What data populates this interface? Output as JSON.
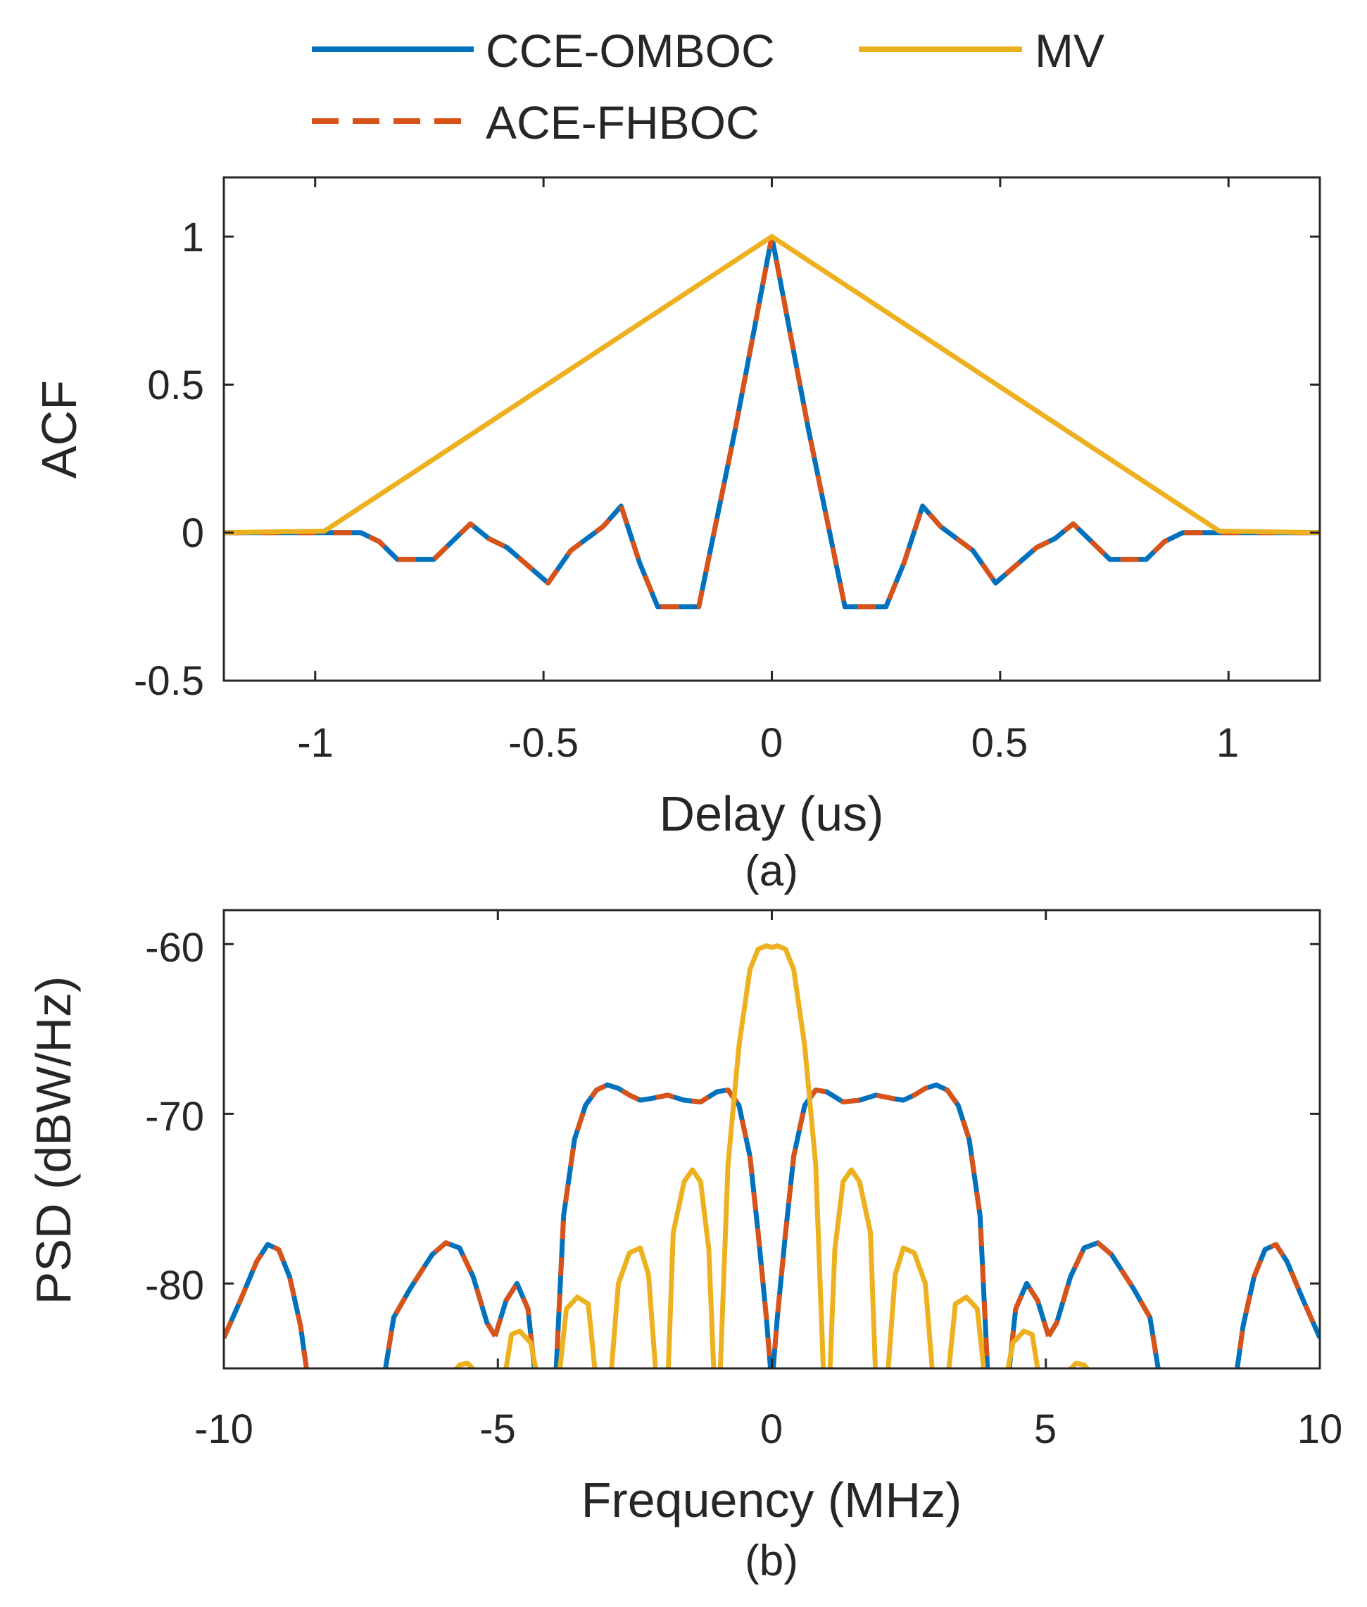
{
  "legend": {
    "items": [
      {
        "label": "CCE-OMBOC",
        "color": "#0072BD",
        "style": "solid"
      },
      {
        "label": "MV",
        "color": "#EDB120",
        "style": "solid"
      },
      {
        "label": "ACE-FHBOC",
        "color": "#D95319",
        "style": "dashed"
      }
    ]
  },
  "captions": {
    "a": "(a)",
    "b": "(b)"
  },
  "chart_data": [
    {
      "type": "line",
      "id": "a",
      "title": "",
      "xlabel": "Delay (us)",
      "ylabel": "ACF",
      "xlim": [
        -1.2,
        1.2
      ],
      "ylim": [
        -0.5,
        1.2
      ],
      "xticks": [
        -1,
        -0.5,
        0,
        0.5,
        1
      ],
      "xtick_labels": [
        "-1",
        "-0.5",
        "0",
        "0.5",
        "1"
      ],
      "yticks": [
        -0.5,
        0,
        0.5,
        1
      ],
      "ytick_labels": [
        "-0.5",
        "0",
        "0.5",
        "1"
      ],
      "grid": false,
      "legend_position": "top-outside",
      "series": [
        {
          "name": "CCE-OMBOC",
          "color": "#0072BD",
          "x": [
            -1.2,
            -0.9,
            -0.86,
            -0.82,
            -0.74,
            -0.66,
            -0.62,
            -0.58,
            -0.49,
            -0.44,
            -0.37,
            -0.33,
            -0.29,
            -0.25,
            -0.16,
            -0.08,
            0,
            0.08,
            0.16,
            0.25,
            0.29,
            0.33,
            0.37,
            0.44,
            0.49,
            0.58,
            0.62,
            0.66,
            0.74,
            0.82,
            0.86,
            0.9,
            1.2
          ],
          "y": [
            0,
            0,
            -0.03,
            -0.09,
            -0.09,
            0.03,
            -0.02,
            -0.05,
            -0.17,
            -0.06,
            0.02,
            0.09,
            -0.1,
            -0.25,
            -0.25,
            0.35,
            1,
            0.35,
            -0.25,
            -0.25,
            -0.1,
            0.09,
            0.02,
            -0.06,
            -0.17,
            -0.05,
            -0.02,
            0.03,
            -0.09,
            -0.09,
            -0.03,
            0,
            0
          ]
        },
        {
          "name": "ACE-FHBOC",
          "color": "#D95319",
          "dashed": true,
          "x": [
            -1.2,
            -0.9,
            -0.86,
            -0.82,
            -0.74,
            -0.66,
            -0.62,
            -0.58,
            -0.49,
            -0.44,
            -0.37,
            -0.33,
            -0.29,
            -0.25,
            -0.16,
            -0.08,
            0,
            0.08,
            0.16,
            0.25,
            0.29,
            0.33,
            0.37,
            0.44,
            0.49,
            0.58,
            0.62,
            0.66,
            0.74,
            0.82,
            0.86,
            0.9,
            1.2
          ],
          "y": [
            0,
            0,
            -0.03,
            -0.09,
            -0.09,
            0.03,
            -0.02,
            -0.05,
            -0.17,
            -0.06,
            0.02,
            0.09,
            -0.1,
            -0.25,
            -0.25,
            0.35,
            1,
            0.35,
            -0.25,
            -0.25,
            -0.1,
            0.09,
            0.02,
            -0.06,
            -0.17,
            -0.05,
            -0.02,
            0.03,
            -0.09,
            -0.09,
            -0.03,
            0,
            0
          ]
        },
        {
          "name": "MV",
          "color": "#EDB120",
          "x": [
            -1.2,
            -0.98,
            0,
            0.98,
            1.2
          ],
          "y": [
            0,
            0.005,
            1,
            0.005,
            0
          ]
        }
      ]
    },
    {
      "type": "line",
      "id": "b",
      "title": "",
      "xlabel": "Frequency (MHz)",
      "ylabel": "PSD (dBW/Hz)",
      "xlim": [
        -10,
        10
      ],
      "ylim": [
        -85,
        -58
      ],
      "xticks": [
        -10,
        -5,
        0,
        5,
        10
      ],
      "xtick_labels": [
        "-10",
        "-5",
        "0",
        "5",
        "10"
      ],
      "yticks": [
        -80,
        -70,
        -60
      ],
      "ytick_labels": [
        "-80",
        "-70",
        "-60"
      ],
      "grid": false,
      "series": [
        {
          "name": "CCE-OMBOC",
          "color": "#0072BD",
          "segments": [
            {
              "x": [
                -10,
                -9.7,
                -9.4,
                -9.2,
                -9.0,
                -8.8,
                -8.6,
                -8.45
              ],
              "y": [
                -83.2,
                -81,
                -78.7,
                -77.7,
                -78,
                -79.6,
                -82.5,
                -86
              ]
            },
            {
              "x": [
                -7.1,
                -6.9,
                -6.6,
                -6.2,
                -5.95,
                -5.7,
                -5.45,
                -5.2,
                -5.05
              ],
              "y": [
                -86,
                -82,
                -80.3,
                -78.3,
                -77.6,
                -77.9,
                -79.6,
                -82.3,
                -83.1
              ]
            },
            {
              "x": [
                -5.05,
                -4.85,
                -4.65,
                -4.45,
                -4.3
              ],
              "y": [
                -83.1,
                -81,
                -80,
                -81.5,
                -86
              ]
            },
            {
              "x": [
                -3.95,
                -3.8,
                -3.6,
                -3.4,
                -3.2,
                -3.0,
                -2.8,
                -2.6,
                -2.4,
                -2.2,
                -1.9,
                -1.6,
                -1.3,
                -1.0,
                -0.8,
                -0.6,
                -0.4,
                -0.25,
                -0.1,
                0
              ],
              "y": [
                -86,
                -76,
                -71.5,
                -69.5,
                -68.6,
                -68.3,
                -68.5,
                -68.9,
                -69.2,
                -69.1,
                -68.9,
                -69.2,
                -69.3,
                -68.7,
                -68.6,
                -69.5,
                -72.5,
                -77,
                -82,
                -86
              ]
            },
            {
              "x": [
                0,
                0.1,
                0.25,
                0.4,
                0.6,
                0.8,
                1.0,
                1.3,
                1.6,
                1.9,
                2.2,
                2.4,
                2.6,
                2.8,
                3.0,
                3.2,
                3.4,
                3.6,
                3.8,
                3.95
              ],
              "y": [
                -86,
                -82,
                -77,
                -72.5,
                -69.5,
                -68.6,
                -68.7,
                -69.3,
                -69.2,
                -68.9,
                -69.1,
                -69.2,
                -68.9,
                -68.5,
                -68.3,
                -68.6,
                -69.5,
                -71.5,
                -76,
                -86
              ]
            },
            {
              "x": [
                4.3,
                4.45,
                4.65,
                4.85,
                5.05
              ],
              "y": [
                -86,
                -81.5,
                -80,
                -81,
                -83.1
              ]
            },
            {
              "x": [
                5.05,
                5.2,
                5.45,
                5.7,
                5.95,
                6.2,
                6.6,
                6.9,
                7.1
              ],
              "y": [
                -83.1,
                -82.3,
                -79.6,
                -77.9,
                -77.6,
                -78.3,
                -80.3,
                -82,
                -86
              ]
            },
            {
              "x": [
                8.45,
                8.6,
                8.8,
                9.0,
                9.2,
                9.4,
                9.7,
                10
              ],
              "y": [
                -86,
                -82.5,
                -79.6,
                -78,
                -77.7,
                -78.7,
                -81,
                -83.2
              ]
            }
          ]
        },
        {
          "name": "ACE-FHBOC",
          "color": "#D95319",
          "dashed": true,
          "segments": [
            {
              "x": [
                -10,
                -9.7,
                -9.4,
                -9.2,
                -9.0,
                -8.8,
                -8.6,
                -8.45
              ],
              "y": [
                -83.2,
                -81,
                -78.7,
                -77.7,
                -78,
                -79.6,
                -82.5,
                -86
              ]
            },
            {
              "x": [
                -7.1,
                -6.9,
                -6.6,
                -6.2,
                -5.95,
                -5.7,
                -5.45,
                -5.2,
                -5.05
              ],
              "y": [
                -86,
                -82,
                -80.3,
                -78.3,
                -77.6,
                -77.9,
                -79.6,
                -82.3,
                -83.1
              ]
            },
            {
              "x": [
                -5.05,
                -4.85,
                -4.65,
                -4.45,
                -4.3
              ],
              "y": [
                -83.1,
                -81,
                -80,
                -81.5,
                -86
              ]
            },
            {
              "x": [
                -3.95,
                -3.8,
                -3.6,
                -3.4,
                -3.2,
                -3.0,
                -2.8,
                -2.6,
                -2.4,
                -2.2,
                -1.9,
                -1.6,
                -1.3,
                -1.0,
                -0.8,
                -0.6,
                -0.4,
                -0.25,
                -0.1,
                0
              ],
              "y": [
                -86,
                -76,
                -71.5,
                -69.5,
                -68.6,
                -68.3,
                -68.5,
                -68.9,
                -69.2,
                -69.1,
                -68.9,
                -69.2,
                -69.3,
                -68.7,
                -68.6,
                -69.5,
                -72.5,
                -77,
                -82,
                -86
              ]
            },
            {
              "x": [
                0,
                0.1,
                0.25,
                0.4,
                0.6,
                0.8,
                1.0,
                1.3,
                1.6,
                1.9,
                2.2,
                2.4,
                2.6,
                2.8,
                3.0,
                3.2,
                3.4,
                3.6,
                3.8,
                3.95
              ],
              "y": [
                -86,
                -82,
                -77,
                -72.5,
                -69.5,
                -68.6,
                -68.7,
                -69.3,
                -69.2,
                -68.9,
                -69.1,
                -69.2,
                -68.9,
                -68.5,
                -68.3,
                -68.6,
                -69.5,
                -71.5,
                -76,
                -86
              ]
            },
            {
              "x": [
                4.3,
                4.45,
                4.65,
                4.85,
                5.05
              ],
              "y": [
                -86,
                -81.5,
                -80,
                -81,
                -83.1
              ]
            },
            {
              "x": [
                5.05,
                5.2,
                5.45,
                5.7,
                5.95,
                6.2,
                6.6,
                6.9,
                7.1
              ],
              "y": [
                -83.1,
                -82.3,
                -79.6,
                -77.9,
                -77.6,
                -78.3,
                -80.3,
                -82,
                -86
              ]
            },
            {
              "x": [
                8.45,
                8.6,
                8.8,
                9.0,
                9.2,
                9.4,
                9.7,
                10
              ],
              "y": [
                -86,
                -82.5,
                -79.6,
                -78,
                -77.7,
                -78.7,
                -81,
                -83.2
              ]
            }
          ]
        },
        {
          "name": "MV",
          "color": "#EDB120",
          "segments": [
            {
              "x": [
                -0.95,
                -0.8,
                -0.6,
                -0.4,
                -0.25,
                -0.1,
                0,
                0.1,
                0.25,
                0.4,
                0.6,
                0.8,
                0.95
              ],
              "y": [
                -86,
                -73,
                -66,
                -61.5,
                -60.3,
                -60.1,
                -60.2,
                -60.1,
                -60.3,
                -61.5,
                -66,
                -73,
                -86
              ]
            },
            {
              "x": [
                -1.9,
                -1.8,
                -1.6,
                -1.45,
                -1.3,
                -1.15,
                -1.05
              ],
              "y": [
                -86,
                -77,
                -74,
                -73.3,
                -74,
                -78,
                -86
              ]
            },
            {
              "x": [
                1.05,
                1.15,
                1.3,
                1.45,
                1.6,
                1.8,
                1.9
              ],
              "y": [
                -86,
                -78,
                -74,
                -73.3,
                -74,
                -77,
                -86
              ]
            },
            {
              "x": [
                -2.95,
                -2.8,
                -2.6,
                -2.4,
                -2.25,
                -2.1
              ],
              "y": [
                -86,
                -80,
                -78.2,
                -77.9,
                -79.5,
                -86
              ]
            },
            {
              "x": [
                2.1,
                2.25,
                2.4,
                2.6,
                2.8,
                2.95
              ],
              "y": [
                -86,
                -79.5,
                -77.9,
                -78.2,
                -80,
                -86
              ]
            },
            {
              "x": [
                -3.9,
                -3.75,
                -3.55,
                -3.35,
                -3.2
              ],
              "y": [
                -86,
                -81.5,
                -80.8,
                -81.2,
                -86
              ]
            },
            {
              "x": [
                3.2,
                3.35,
                3.55,
                3.75,
                3.9
              ],
              "y": [
                -86,
                -81.2,
                -80.8,
                -81.5,
                -86
              ]
            },
            {
              "x": [
                -4.9,
                -4.75,
                -4.6,
                -4.4,
                -4.25
              ],
              "y": [
                -86,
                -83,
                -82.8,
                -83.5,
                -86
              ]
            },
            {
              "x": [
                4.25,
                4.4,
                4.6,
                4.75,
                4.9
              ],
              "y": [
                -86,
                -83.5,
                -82.8,
                -83,
                -86
              ]
            },
            {
              "x": [
                -5.8,
                -5.7,
                -5.55,
                -5.4
              ],
              "y": [
                -85.2,
                -84.8,
                -84.7,
                -85.2
              ]
            },
            {
              "x": [
                5.4,
                5.55,
                5.7,
                5.8
              ],
              "y": [
                -85.2,
                -84.7,
                -84.8,
                -85.2
              ]
            }
          ]
        }
      ]
    }
  ]
}
